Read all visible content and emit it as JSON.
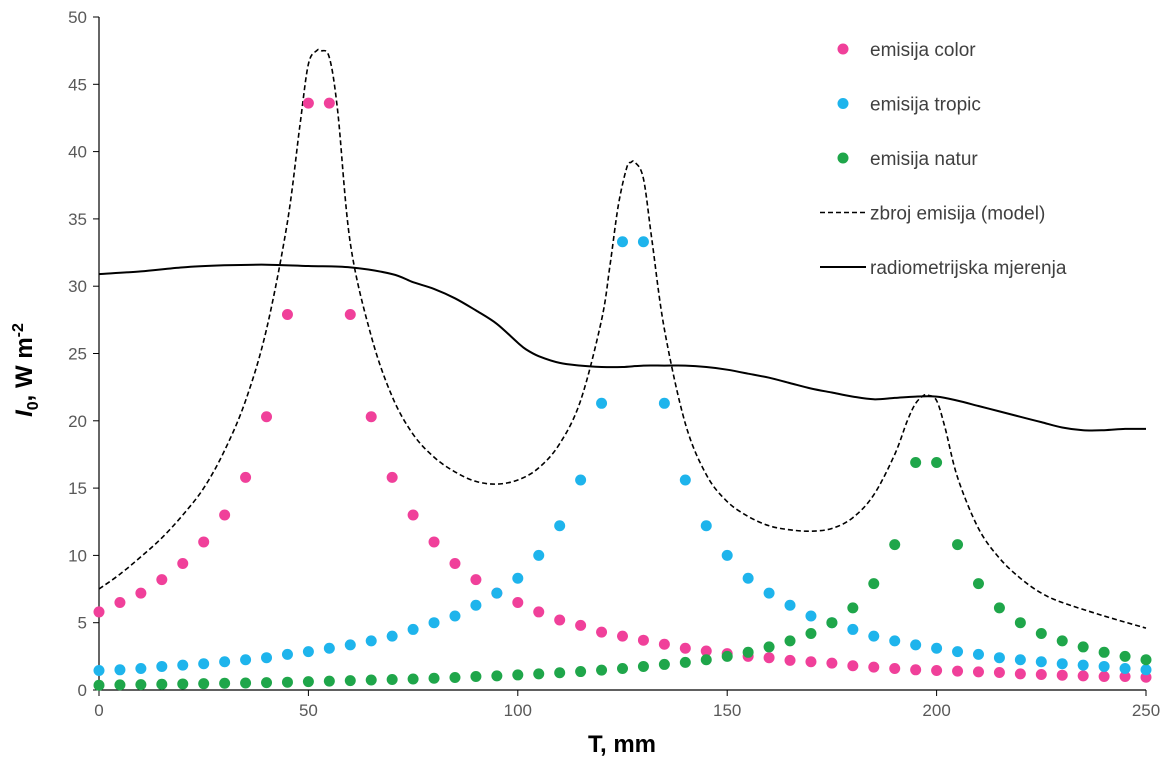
{
  "chart_data": {
    "type": "scatter",
    "title": "",
    "xlabel": "T, mm",
    "ylabel": {
      "main": "I",
      "sub": "0",
      "unit": ", W m",
      "sup": "-2"
    },
    "xlim": [
      0,
      250
    ],
    "ylim": [
      0,
      50
    ],
    "xticks": [
      "0",
      "50",
      "100",
      "150",
      "200",
      "250"
    ],
    "yticks": [
      "0",
      "5",
      "10",
      "15",
      "20",
      "25",
      "30",
      "35",
      "40",
      "45",
      "50"
    ],
    "grid": false,
    "legend_position": "top-right",
    "x": [
      0,
      5,
      10,
      15,
      20,
      25,
      30,
      35,
      40,
      45,
      50,
      55,
      60,
      65,
      70,
      75,
      80,
      85,
      90,
      95,
      100,
      105,
      110,
      115,
      120,
      125,
      130,
      135,
      140,
      145,
      150,
      155,
      160,
      165,
      170,
      175,
      180,
      185,
      190,
      195,
      200,
      205,
      210,
      215,
      220,
      225,
      230,
      235,
      240,
      245,
      250
    ],
    "series": [
      {
        "name": "emisija color",
        "kind": "markers",
        "color": "#f0409a",
        "values": [
          5.8,
          6.5,
          7.2,
          8.2,
          9.4,
          11.0,
          13.0,
          15.8,
          20.3,
          27.9,
          43.6,
          43.6,
          27.9,
          20.3,
          15.8,
          13.0,
          11.0,
          9.4,
          8.2,
          7.2,
          6.5,
          5.8,
          5.2,
          4.8,
          4.3,
          4.0,
          3.7,
          3.4,
          3.1,
          2.9,
          2.7,
          2.5,
          2.4,
          2.2,
          2.1,
          2.0,
          1.8,
          1.7,
          1.6,
          1.5,
          1.45,
          1.4,
          1.35,
          1.3,
          1.2,
          1.15,
          1.1,
          1.05,
          1.0,
          1.0,
          0.95
        ]
      },
      {
        "name": "emisija tropic",
        "kind": "markers",
        "color": "#1eb4ec",
        "values": [
          1.45,
          1.5,
          1.6,
          1.75,
          1.85,
          1.95,
          2.1,
          2.25,
          2.4,
          2.65,
          2.85,
          3.1,
          3.35,
          3.65,
          4.0,
          4.5,
          5.0,
          5.5,
          6.3,
          7.2,
          8.3,
          10.0,
          12.2,
          15.6,
          21.3,
          33.3,
          33.3,
          21.3,
          15.6,
          12.2,
          10.0,
          8.3,
          7.2,
          6.3,
          5.5,
          5.0,
          4.5,
          4.0,
          3.65,
          3.35,
          3.1,
          2.85,
          2.65,
          2.4,
          2.25,
          2.1,
          1.95,
          1.85,
          1.75,
          1.6,
          1.5
        ]
      },
      {
        "name": "emisija natur",
        "kind": "markers",
        "color": "#1fa64a",
        "values": [
          0.35,
          0.38,
          0.4,
          0.43,
          0.45,
          0.47,
          0.5,
          0.52,
          0.55,
          0.58,
          0.62,
          0.66,
          0.7,
          0.74,
          0.78,
          0.82,
          0.87,
          0.93,
          1.0,
          1.05,
          1.12,
          1.2,
          1.28,
          1.37,
          1.48,
          1.6,
          1.75,
          1.9,
          2.05,
          2.25,
          2.5,
          2.8,
          3.2,
          3.65,
          4.2,
          5.0,
          6.1,
          7.9,
          10.8,
          16.9,
          16.9,
          10.8,
          7.9,
          6.1,
          5.0,
          4.2,
          3.65,
          3.2,
          2.8,
          2.5,
          2.25
        ]
      },
      {
        "name": "zbroj emisija (model)",
        "kind": "dashed-line",
        "color": "#000000",
        "x": [
          0,
          5,
          10,
          15,
          20,
          25,
          30,
          35,
          40,
          45,
          48,
          50,
          52,
          53,
          55,
          57,
          60,
          65,
          70,
          75,
          80,
          85,
          90,
          95,
          100,
          105,
          110,
          115,
          120,
          122,
          124,
          126,
          127,
          128,
          130,
          132,
          135,
          140,
          145,
          150,
          155,
          160,
          165,
          170,
          175,
          180,
          185,
          190,
          193,
          195,
          197,
          198,
          200,
          202,
          205,
          210,
          215,
          220,
          225,
          230,
          240,
          250
        ],
        "values": [
          7.5,
          8.6,
          9.9,
          11.3,
          13.0,
          15.0,
          17.8,
          21.5,
          26.8,
          34.8,
          42.0,
          46.5,
          47.5,
          47.5,
          47.0,
          43.0,
          33.2,
          26.3,
          21.8,
          19.0,
          17.3,
          16.2,
          15.5,
          15.3,
          15.6,
          16.5,
          18.3,
          21.5,
          27.5,
          31.5,
          36.0,
          38.8,
          39.2,
          39.2,
          38.0,
          33.5,
          26.8,
          19.8,
          16.0,
          14.0,
          12.9,
          12.2,
          11.9,
          11.8,
          12.0,
          12.8,
          14.5,
          17.5,
          20.0,
          21.3,
          21.9,
          21.9,
          21.5,
          19.5,
          15.8,
          12.0,
          9.8,
          8.3,
          7.2,
          6.5,
          5.5,
          4.6
        ]
      },
      {
        "name": "radiometrijska mjerenja",
        "kind": "solid-line",
        "color": "#000000",
        "x": [
          0,
          10,
          20,
          30,
          40,
          50,
          60,
          70,
          75,
          80,
          85,
          90,
          95,
          100,
          102,
          105,
          110,
          115,
          120,
          125,
          130,
          135,
          140,
          145,
          150,
          155,
          160,
          165,
          170,
          175,
          180,
          185,
          190,
          195,
          200,
          205,
          210,
          215,
          220,
          225,
          230,
          235,
          240,
          245,
          250
        ],
        "values": [
          30.9,
          31.1,
          31.4,
          31.55,
          31.6,
          31.5,
          31.4,
          30.9,
          30.3,
          29.8,
          29.1,
          28.2,
          27.2,
          25.8,
          25.3,
          24.8,
          24.3,
          24.1,
          24.0,
          24.0,
          24.1,
          24.1,
          24.1,
          24.0,
          23.8,
          23.5,
          23.2,
          22.8,
          22.4,
          22.1,
          21.8,
          21.6,
          21.7,
          21.8,
          21.8,
          21.5,
          21.1,
          20.7,
          20.3,
          19.9,
          19.5,
          19.3,
          19.3,
          19.4,
          19.4
        ]
      }
    ]
  }
}
